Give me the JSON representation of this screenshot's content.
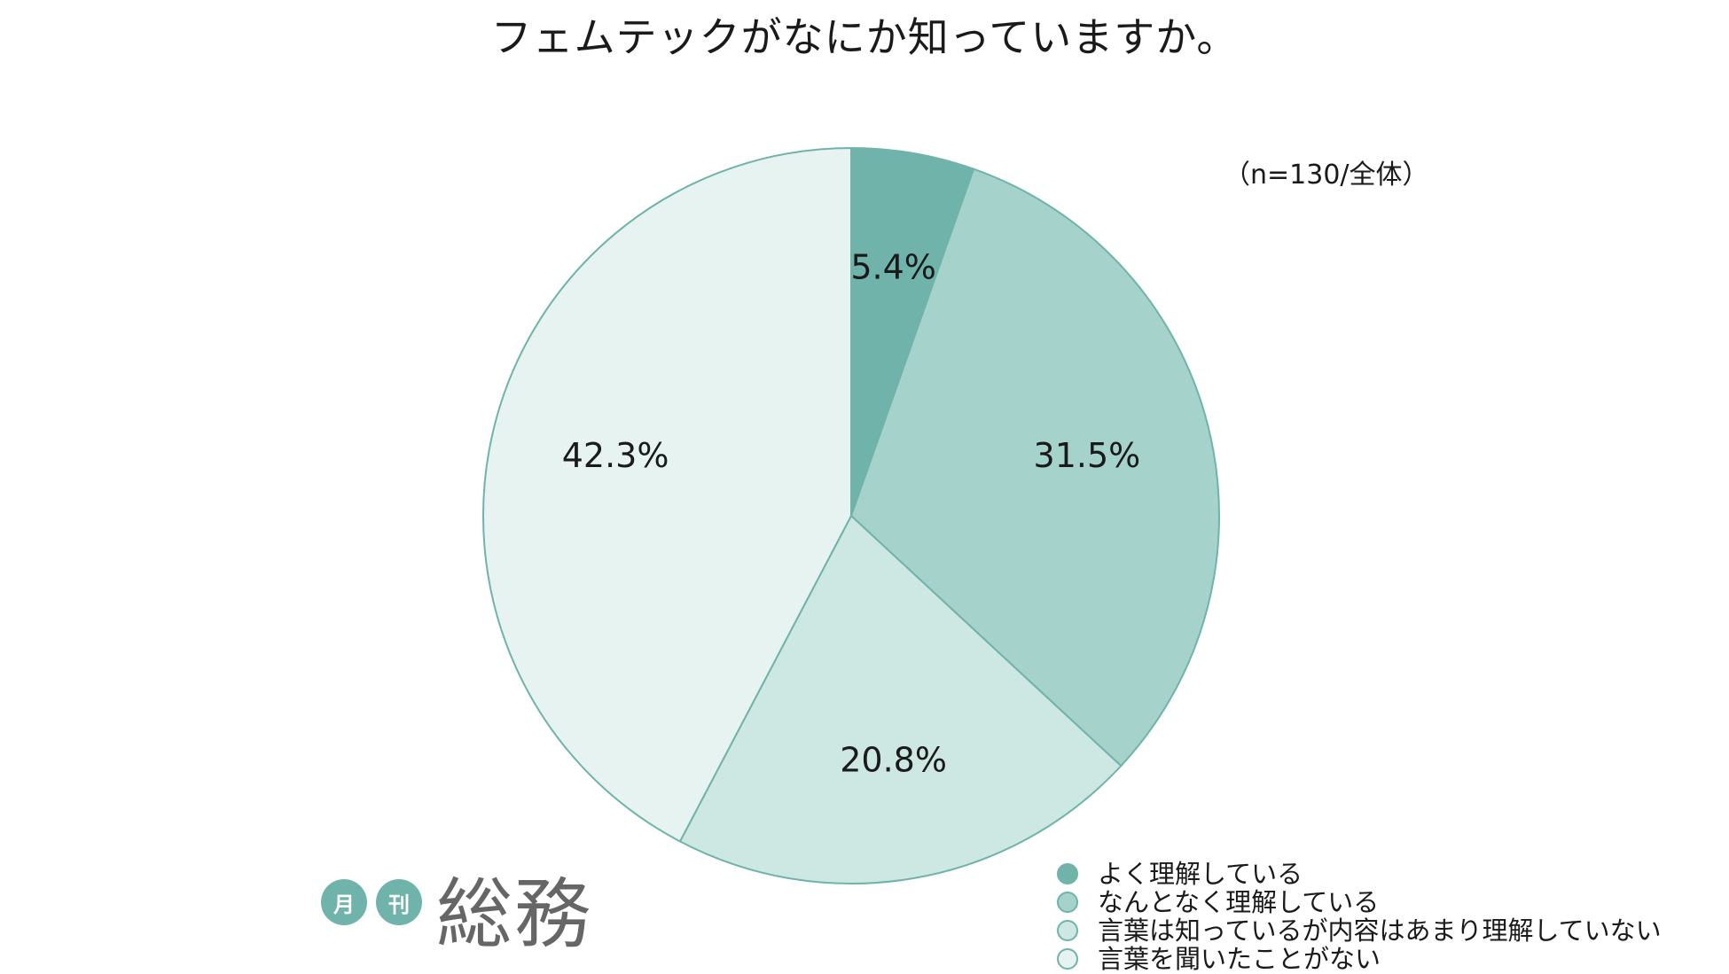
{
  "chart_data": {
    "type": "pie",
    "title": "フェムテックがなにか知っていますか。",
    "note": "（n=130/全体）",
    "categories": [
      "よく理解している",
      "なんとなく理解している",
      "言葉は知っているが内容はあまり理解していない",
      "言葉を聞いたことがない"
    ],
    "values": [
      5.4,
      31.5,
      20.8,
      42.3
    ],
    "value_labels": [
      "5.4%",
      "31.5%",
      "20.8%",
      "42.3%"
    ],
    "colors": [
      "#6fb3aa",
      "#a5d2cb",
      "#cde7e2",
      "#e6f3f1"
    ],
    "edge_color": "#6fb3aa",
    "start": "top",
    "direction": "clockwise",
    "legend_position": "bottom-right"
  },
  "logo": {
    "circle_1": "月",
    "circle_2": "刊",
    "main": "総務"
  }
}
